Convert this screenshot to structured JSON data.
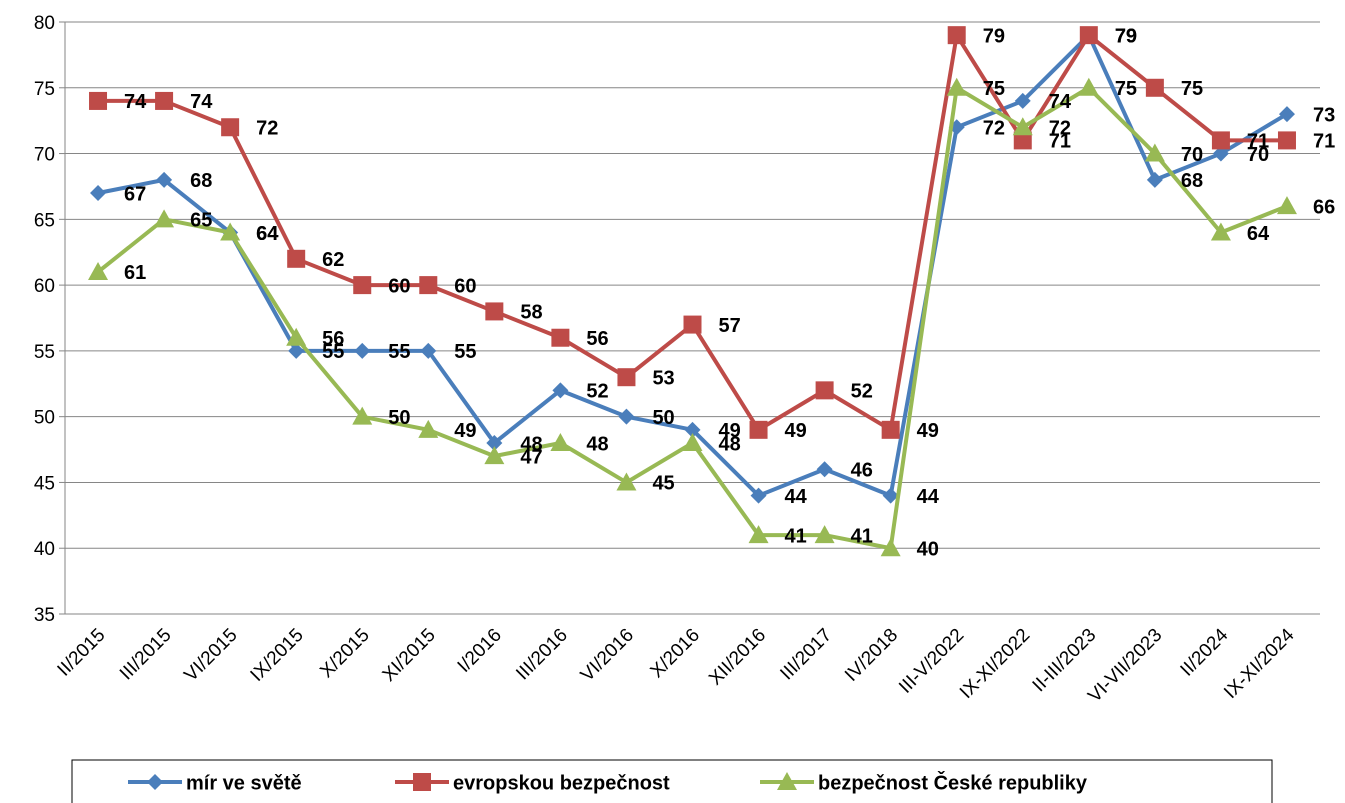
{
  "chart_data": {
    "type": "line",
    "categories": [
      "II/2015",
      "III/2015",
      "VI/2015",
      "IX/2015",
      "X/2015",
      "XI/2015",
      "I/2016",
      "III/2016",
      "VI/2016",
      "X/2016",
      "XII/2016",
      "III/2017",
      "IV/2018",
      "III-V/2022",
      "IX-XI/2022",
      "II-III/2023",
      "VI-VII/2023",
      "II/2024",
      "IX-XI/2024"
    ],
    "series": [
      {
        "name": "mír ve světě",
        "color": "#4a7ebb",
        "marker": "diamond",
        "values": [
          67,
          68,
          64,
          55,
          55,
          55,
          48,
          52,
          50,
          49,
          44,
          46,
          44,
          72,
          74,
          79,
          68,
          70,
          73
        ]
      },
      {
        "name": "evropskou bezpečnost",
        "color": "#be4b48",
        "marker": "square",
        "values": [
          74,
          74,
          72,
          62,
          60,
          60,
          58,
          56,
          53,
          57,
          49,
          52,
          49,
          79,
          71,
          79,
          75,
          71,
          71
        ]
      },
      {
        "name": "bezpečnost České republiky",
        "color": "#98b954",
        "marker": "triangle",
        "values": [
          61,
          65,
          64,
          56,
          50,
          49,
          47,
          48,
          45,
          48,
          41,
          41,
          40,
          75,
          72,
          75,
          70,
          64,
          66
        ]
      }
    ],
    "ylim": [
      35,
      80
    ],
    "yticks": [
      35,
      40,
      45,
      50,
      55,
      60,
      65,
      70,
      75,
      80
    ],
    "grid": true,
    "legend": "bottom"
  }
}
